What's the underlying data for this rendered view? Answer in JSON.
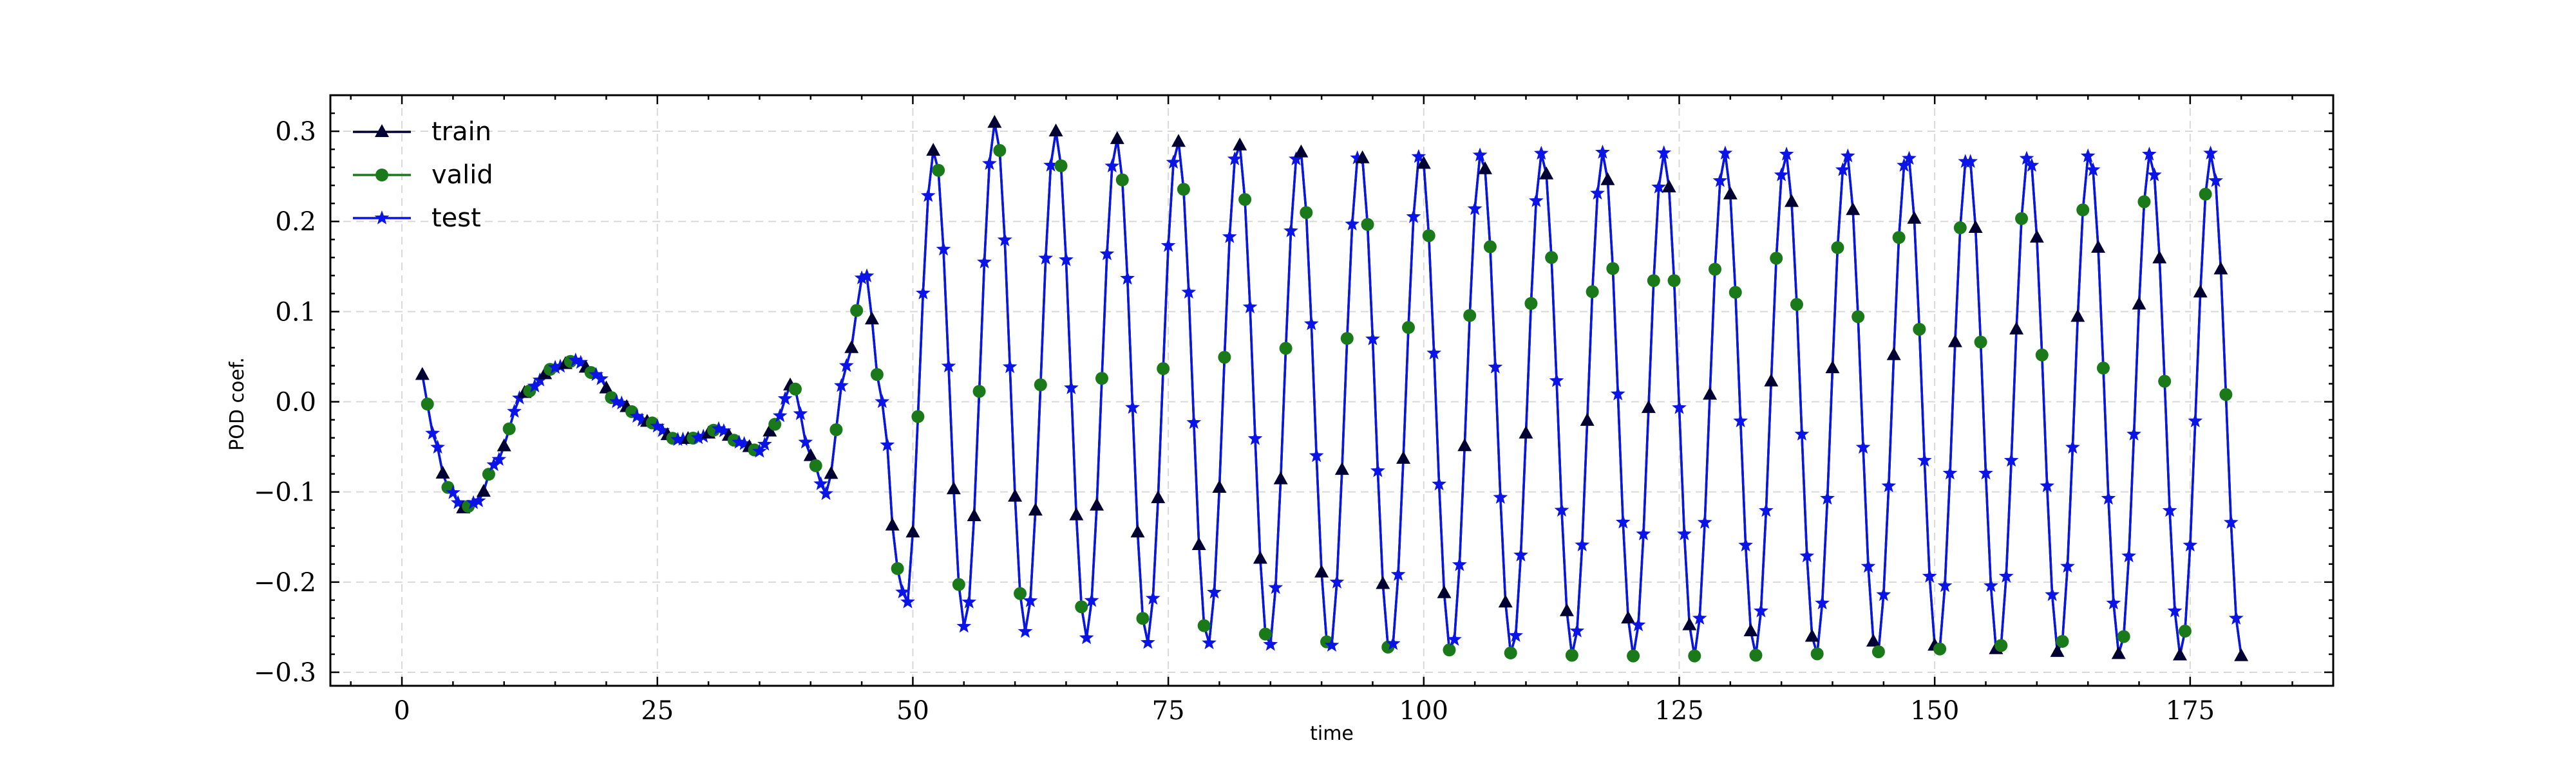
{
  "chart_data": {
    "type": "line",
    "title": "",
    "xlabel": "time",
    "ylabel": "POD coef.",
    "xlim": [
      -7,
      189
    ],
    "ylim": [
      -0.315,
      0.34
    ],
    "xticks": [
      0,
      25,
      50,
      75,
      100,
      125,
      150,
      175
    ],
    "yticks": [
      -0.3,
      -0.2,
      -0.1,
      0.0,
      0.1,
      0.2,
      0.3
    ],
    "xtick_labels": [
      "0",
      "25",
      "50",
      "75",
      "100",
      "125",
      "150",
      "175"
    ],
    "ytick_labels": [
      "−0.3",
      "−0.2",
      "−0.1",
      "0.0",
      "0.1",
      "0.2",
      "0.3"
    ],
    "grid": true,
    "legend_position": "top-left",
    "time_start": 2,
    "time_end": 180,
    "time_step": 0.5,
    "signal_keypoints": {
      "x": [
        2,
        3,
        4.5,
        6,
        7.5,
        9,
        12,
        15,
        17,
        19,
        21,
        24,
        27,
        29,
        31,
        33,
        35,
        36.5,
        38.2,
        40,
        41.5,
        43.5,
        45.3,
        47,
        48.5
      ],
      "y": [
        0.03,
        -0.035,
        -0.095,
        -0.118,
        -0.11,
        -0.07,
        0.01,
        0.038,
        0.046,
        0.03,
        0.0,
        -0.022,
        -0.042,
        -0.04,
        -0.03,
        -0.045,
        -0.055,
        -0.025,
        0.02,
        -0.06,
        -0.102,
        0.04,
        0.145,
        0.0,
        -0.185
      ]
    },
    "oscillation": {
      "start": 48.5,
      "period": 5.95,
      "first_peak": 52.1,
      "peak_values": [
        0.28,
        0.31,
        0.3,
        0.292,
        0.29,
        0.288,
        0.283,
        0.28,
        0.278,
        0.277,
        0.277,
        0.277,
        0.276,
        0.276,
        0.276,
        0.276,
        0.276,
        0.276,
        0.276,
        0.276,
        0.276,
        0.276
      ],
      "trough_values": [
        -0.25,
        -0.255,
        -0.262,
        -0.268,
        -0.27,
        -0.274,
        -0.278,
        -0.28,
        -0.28,
        -0.281,
        -0.282,
        -0.282,
        -0.282,
        -0.282,
        -0.282,
        -0.282,
        -0.282,
        -0.282,
        -0.282,
        -0.282,
        -0.282,
        -0.282
      ]
    },
    "series": [
      {
        "name": "train",
        "color": "#000033",
        "marker": "triangle",
        "pattern_phase": 0
      },
      {
        "name": "valid",
        "color": "#1a7a1a",
        "marker": "circle",
        "pattern_phase": 1
      },
      {
        "name": "test",
        "color": "#0a14e6",
        "marker": "star",
        "pattern_phase": 2
      }
    ]
  }
}
